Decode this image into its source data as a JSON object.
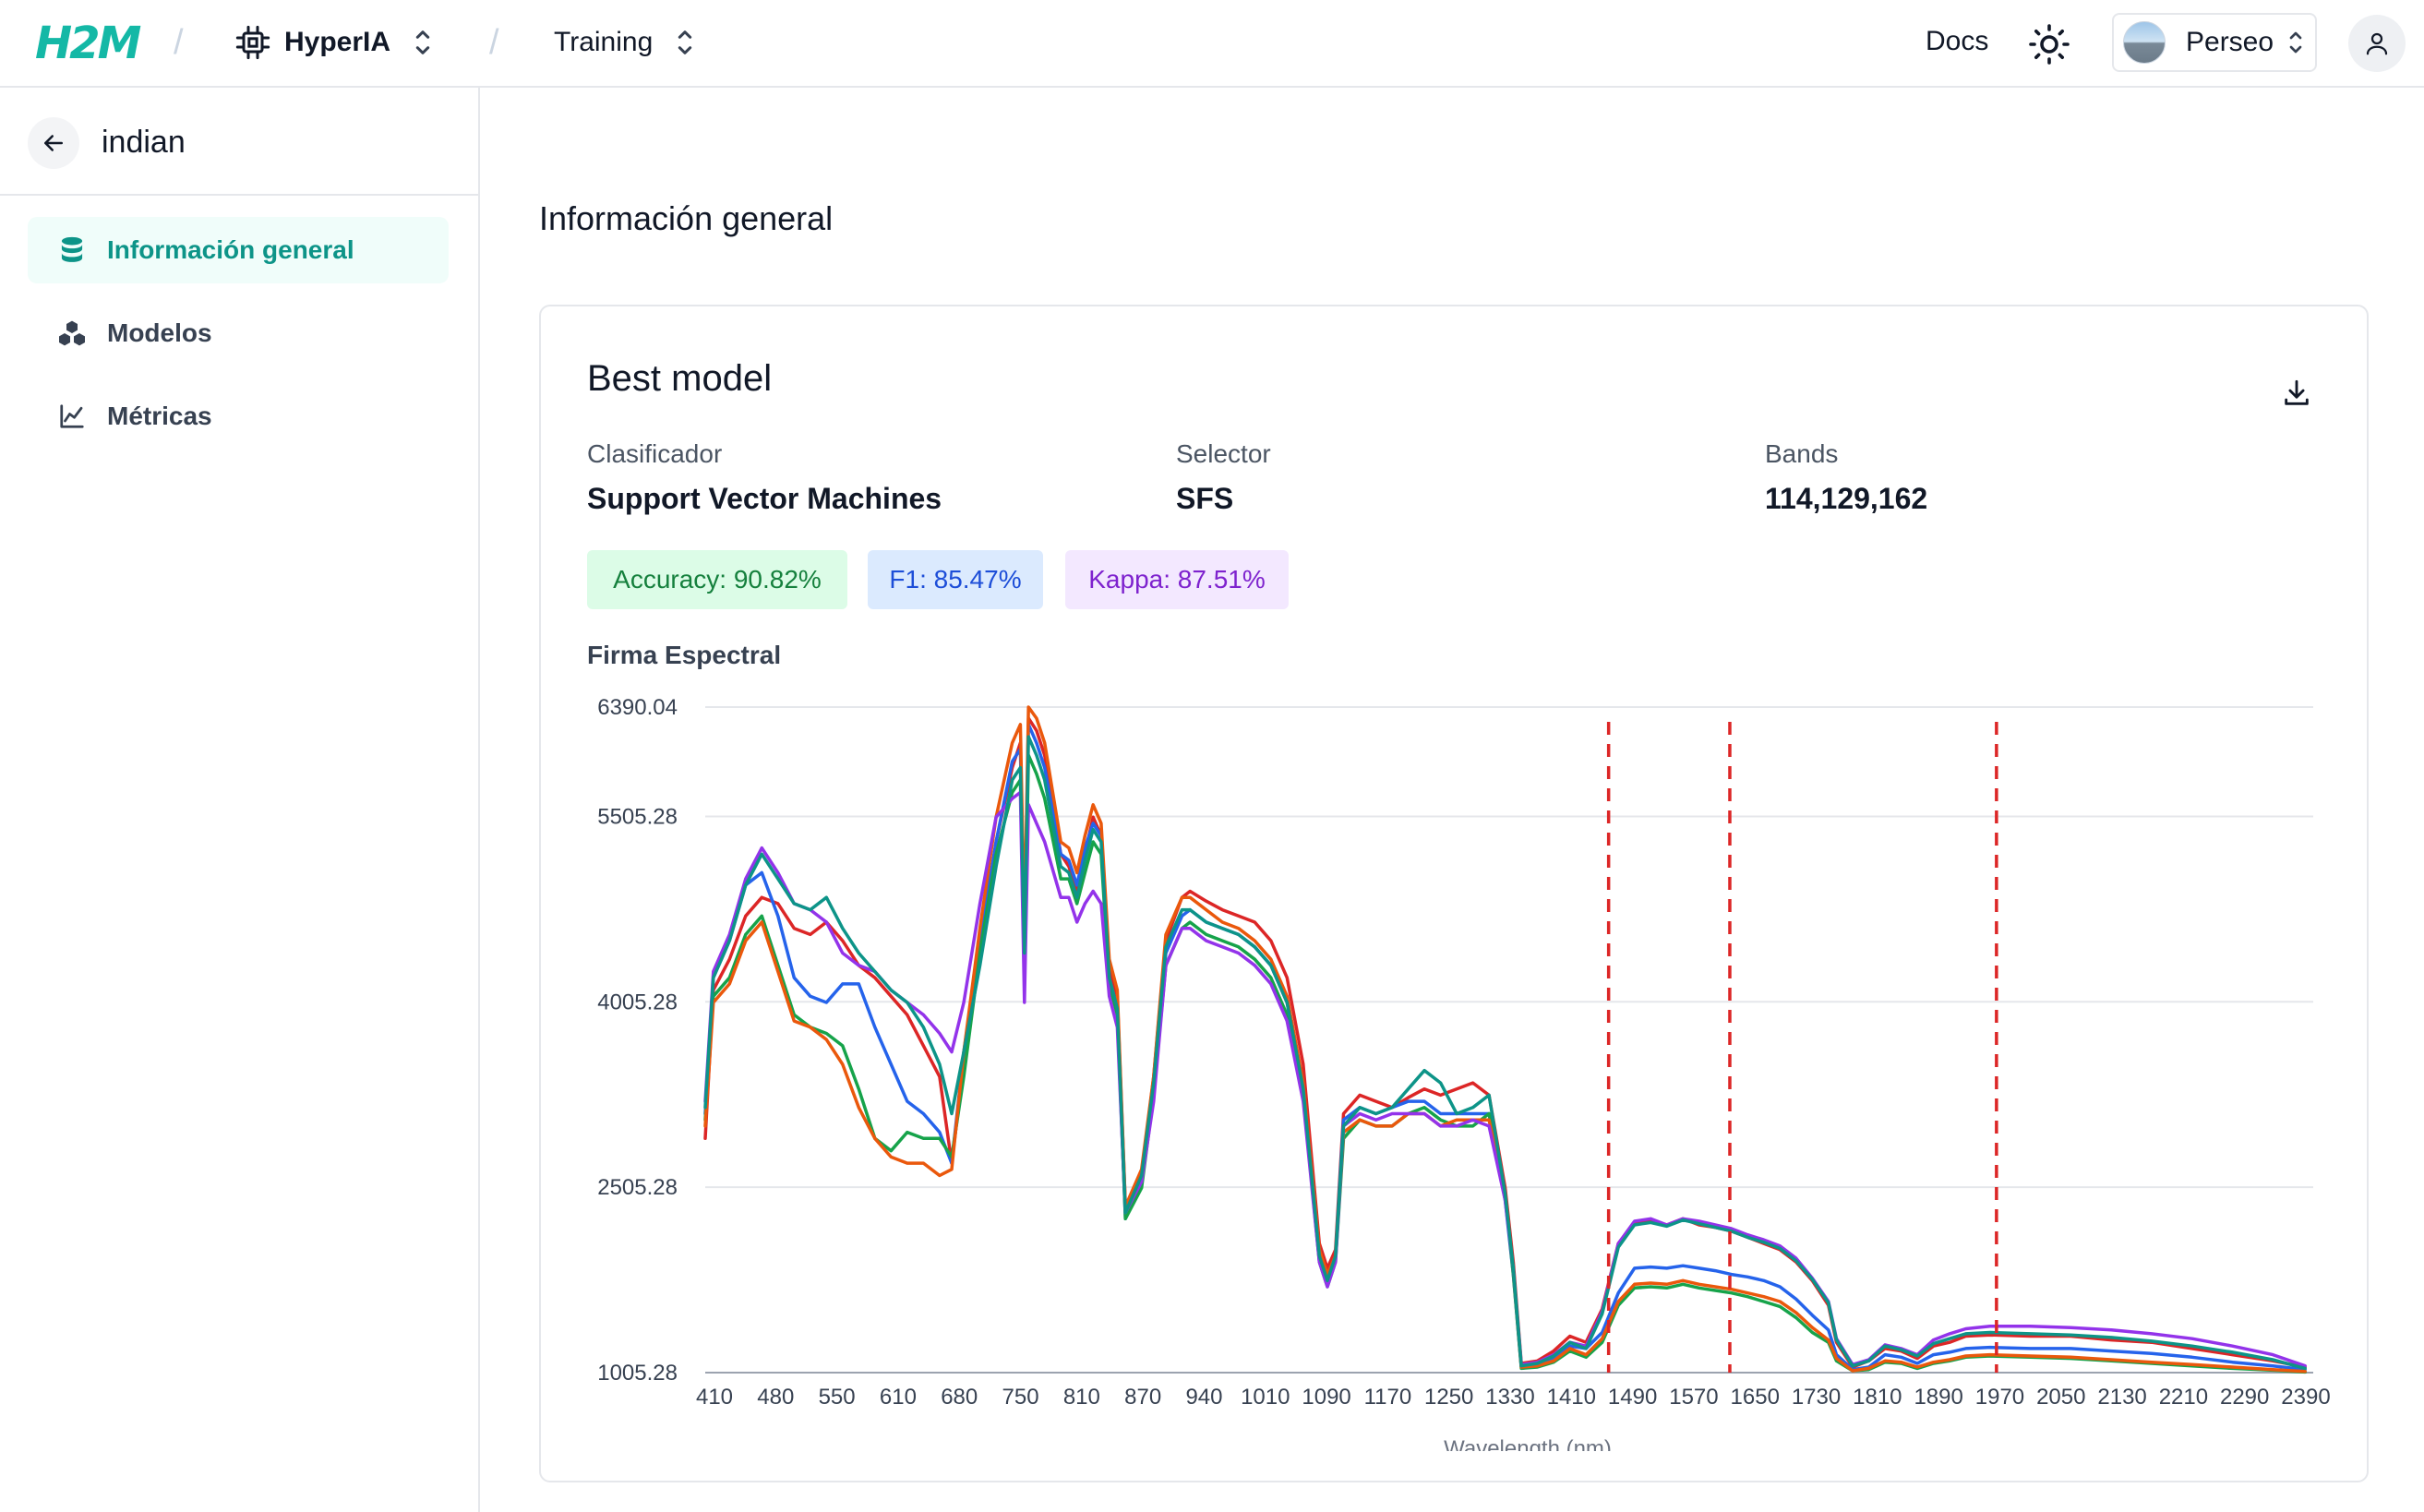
{
  "header": {
    "logo": "H2M",
    "project": "HyperIA",
    "section": "Training",
    "docs_label": "Docs",
    "user_name": "Perseo"
  },
  "sidebar": {
    "title": "indian",
    "items": [
      {
        "label": "Información general",
        "icon": "database-icon",
        "active": true
      },
      {
        "label": "Modelos",
        "icon": "boxes-icon",
        "active": false
      },
      {
        "label": "Métricas",
        "icon": "line-chart-icon",
        "active": false
      }
    ]
  },
  "main": {
    "page_title": "Información general",
    "card": {
      "title": "Best model",
      "classifier_label": "Clasificador",
      "classifier_value": "Support Vector Machines",
      "selector_label": "Selector",
      "selector_value": "SFS",
      "bands_label": "Bands",
      "bands_value": "114,129,162",
      "badges": {
        "accuracy": "Accuracy: 90.82%",
        "f1": "F1: 85.47%",
        "kappa": "Kappa: 87.51%"
      },
      "chart_title": "Firma Espectral"
    }
  },
  "colors": {
    "accent": "#0d9488",
    "series": [
      "#dc2626",
      "#2563eb",
      "#16a34a",
      "#ea580c",
      "#9333ea",
      "#0d9488"
    ],
    "band_marker": "#dc2626"
  },
  "chart_data": {
    "type": "line",
    "title": "Firma Espectral",
    "xlabel": "Wavelength (nm)",
    "ylabel": "",
    "xlim": [
      410,
      2400
    ],
    "ylim": [
      1005.28,
      6390.04
    ],
    "y_ticks": [
      1005.28,
      2505.28,
      4005.28,
      5505.28,
      6390.04
    ],
    "y_tick_labels": [
      "1005.28",
      "2505.28",
      "4005.28",
      "5505.28",
      "6390.04"
    ],
    "x_tick_labels": [
      "410",
      "480",
      "550",
      "610",
      "680",
      "750",
      "810",
      "870",
      "940",
      "1010",
      "1090",
      "1170",
      "1250",
      "1330",
      "1410",
      "1490",
      "1570",
      "1650",
      "1730",
      "1810",
      "1890",
      "1970",
      "2050",
      "2130",
      "2210",
      "2290",
      "2390"
    ],
    "grid": "horizontal",
    "selected_band_wavelengths": [
      1528,
      1678,
      2008
    ],
    "x": [
      410,
      420,
      440,
      460,
      480,
      500,
      520,
      540,
      560,
      580,
      600,
      620,
      640,
      660,
      680,
      700,
      715,
      730,
      750,
      770,
      790,
      800,
      805,
      810,
      820,
      830,
      850,
      860,
      870,
      880,
      890,
      900,
      910,
      920,
      930,
      950,
      965,
      980,
      1000,
      1010,
      1030,
      1050,
      1070,
      1090,
      1110,
      1130,
      1150,
      1170,
      1180,
      1190,
      1200,
      1220,
      1240,
      1260,
      1280,
      1300,
      1320,
      1340,
      1360,
      1380,
      1400,
      1410,
      1420,
      1440,
      1460,
      1480,
      1500,
      1520,
      1540,
      1560,
      1580,
      1600,
      1620,
      1640,
      1660,
      1680,
      1700,
      1720,
      1740,
      1760,
      1780,
      1800,
      1810,
      1830,
      1850,
      1870,
      1890,
      1910,
      1930,
      1950,
      1970,
      2000,
      2050,
      2100,
      2150,
      2200,
      2250,
      2300,
      2350,
      2390
    ],
    "series": [
      {
        "color": "#dc2626",
        "values": [
          2900,
          4100,
          4350,
          4700,
          4850,
          4800,
          4600,
          4550,
          4650,
          4500,
          4300,
          4200,
          4050,
          3900,
          3650,
          3400,
          2700,
          3500,
          4400,
          5300,
          5900,
          6100,
          4500,
          6300,
          6200,
          6000,
          5200,
          5100,
          4900,
          5200,
          5500,
          5350,
          4300,
          4050,
          2350,
          2600,
          3400,
          4500,
          4850,
          4900,
          4820,
          4750,
          4700,
          4650,
          4500,
          4200,
          3500,
          2050,
          1850,
          2000,
          3100,
          3250,
          3200,
          3150,
          3230,
          3300,
          3250,
          3300,
          3350,
          3250,
          2500,
          1900,
          1080,
          1100,
          1180,
          1300,
          1250,
          1520,
          2050,
          2220,
          2230,
          2200,
          2250,
          2200,
          2180,
          2150,
          2100,
          2050,
          2000,
          1900,
          1750,
          1550,
          1250,
          1050,
          1100,
          1200,
          1180,
          1120,
          1220,
          1250,
          1300,
          1310,
          1300,
          1300,
          1270,
          1250,
          1200,
          1150,
          1100,
          1050
        ]
      },
      {
        "color": "#2563eb",
        "values": [
          3100,
          4200,
          4500,
          4950,
          5050,
          4700,
          4200,
          4050,
          4000,
          4150,
          4150,
          3800,
          3500,
          3200,
          3100,
          2950,
          2700,
          3600,
          4500,
          5300,
          5950,
          6050,
          4400,
          6250,
          6100,
          5900,
          5200,
          5150,
          4950,
          5250,
          5450,
          5350,
          4200,
          3950,
          2250,
          2550,
          3300,
          4400,
          4700,
          4750,
          4650,
          4600,
          4550,
          4450,
          4300,
          4000,
          3300,
          1950,
          1750,
          1950,
          3050,
          3150,
          3100,
          3150,
          3200,
          3200,
          3100,
          3100,
          3100,
          3100,
          2400,
          1800,
          1050,
          1070,
          1120,
          1220,
          1200,
          1330,
          1650,
          1850,
          1860,
          1850,
          1870,
          1850,
          1830,
          1800,
          1780,
          1750,
          1700,
          1600,
          1470,
          1350,
          1150,
          1030,
          1050,
          1150,
          1130,
          1080,
          1150,
          1170,
          1200,
          1210,
          1200,
          1200,
          1180,
          1160,
          1130,
          1090,
          1060,
          1030
        ]
      },
      {
        "color": "#16a34a",
        "values": [
          3050,
          4050,
          4200,
          4550,
          4700,
          4300,
          3900,
          3800,
          3750,
          3650,
          3300,
          2900,
          2800,
          2950,
          2900,
          2900,
          2750,
          3400,
          4400,
          5200,
          5700,
          5800,
          4300,
          6000,
          5850,
          5650,
          5000,
          5000,
          4800,
          5050,
          5300,
          5200,
          4150,
          3900,
          2250,
          2500,
          3250,
          4300,
          4600,
          4650,
          4550,
          4500,
          4450,
          4350,
          4200,
          3900,
          3250,
          1900,
          1700,
          1900,
          2900,
          3050,
          3000,
          3000,
          3100,
          3150,
          3050,
          3000,
          3000,
          3100,
          2450,
          1800,
          1040,
          1050,
          1090,
          1180,
          1130,
          1250,
          1550,
          1690,
          1700,
          1690,
          1720,
          1690,
          1670,
          1650,
          1620,
          1580,
          1540,
          1450,
          1330,
          1250,
          1100,
          1020,
          1030,
          1090,
          1080,
          1040,
          1080,
          1100,
          1130,
          1140,
          1130,
          1120,
          1100,
          1080,
          1060,
          1040,
          1025,
          1010
        ]
      },
      {
        "color": "#ea580c",
        "values": [
          3000,
          4000,
          4150,
          4500,
          4650,
          4250,
          3850,
          3800,
          3700,
          3500,
          3150,
          2900,
          2750,
          2700,
          2700,
          2600,
          2650,
          3600,
          4600,
          5500,
          6100,
          6250,
          4600,
          6390,
          6300,
          6100,
          5300,
          5250,
          5050,
          5350,
          5600,
          5450,
          4350,
          4100,
          2350,
          2650,
          3400,
          4550,
          4850,
          4850,
          4750,
          4650,
          4600,
          4500,
          4350,
          4050,
          3350,
          2000,
          1800,
          1950,
          2950,
          3050,
          3000,
          3000,
          3100,
          3100,
          3000,
          3050,
          3050,
          3050,
          2450,
          1850,
          1050,
          1060,
          1100,
          1200,
          1150,
          1280,
          1580,
          1720,
          1730,
          1720,
          1750,
          1720,
          1700,
          1680,
          1650,
          1620,
          1580,
          1490,
          1370,
          1270,
          1120,
          1020,
          1040,
          1100,
          1090,
          1050,
          1090,
          1110,
          1140,
          1150,
          1140,
          1130,
          1110,
          1090,
          1070,
          1050,
          1030,
          1015
        ]
      },
      {
        "color": "#9333ea",
        "values": [
          3200,
          4250,
          4550,
          5000,
          5250,
          5050,
          4800,
          4750,
          4650,
          4400,
          4300,
          4250,
          4100,
          4000,
          3900,
          3750,
          3600,
          4000,
          4800,
          5500,
          5650,
          5700,
          4000,
          5600,
          5450,
          5300,
          4850,
          4850,
          4650,
          4800,
          4900,
          4800,
          4050,
          3800,
          2300,
          2550,
          3200,
          4300,
          4600,
          4600,
          4500,
          4450,
          4400,
          4300,
          4150,
          3850,
          3200,
          1900,
          1700,
          1900,
          3000,
          3100,
          3050,
          3100,
          3100,
          3100,
          3000,
          3000,
          3050,
          3000,
          2400,
          1850,
          1070,
          1090,
          1150,
          1250,
          1220,
          1500,
          2050,
          2230,
          2250,
          2200,
          2250,
          2230,
          2200,
          2170,
          2120,
          2080,
          2030,
          1930,
          1770,
          1580,
          1280,
          1070,
          1110,
          1230,
          1200,
          1150,
          1270,
          1320,
          1360,
          1380,
          1380,
          1370,
          1350,
          1320,
          1280,
          1220,
          1150,
          1060
        ]
      },
      {
        "color": "#0d9488",
        "values": [
          3150,
          4200,
          4500,
          4950,
          5200,
          5000,
          4800,
          4750,
          4850,
          4600,
          4400,
          4250,
          4100,
          4000,
          3800,
          3500,
          3100,
          3600,
          4300,
          5100,
          5800,
          5900,
          4400,
          6150,
          6000,
          5800,
          5100,
          5050,
          4850,
          5150,
          5400,
          5300,
          4200,
          3950,
          2300,
          2600,
          3350,
          4450,
          4750,
          4750,
          4650,
          4600,
          4550,
          4450,
          4300,
          4000,
          3300,
          1950,
          1750,
          1950,
          3000,
          3150,
          3100,
          3150,
          3300,
          3450,
          3350,
          3100,
          3150,
          3250,
          2450,
          1850,
          1060,
          1080,
          1140,
          1250,
          1200,
          1480,
          2020,
          2200,
          2220,
          2190,
          2240,
          2210,
          2180,
          2150,
          2100,
          2060,
          2010,
          1910,
          1760,
          1570,
          1270,
          1060,
          1100,
          1220,
          1190,
          1140,
          1240,
          1280,
          1320,
          1330,
          1320,
          1310,
          1290,
          1260,
          1220,
          1170,
          1110,
          1040
        ]
      }
    ]
  }
}
